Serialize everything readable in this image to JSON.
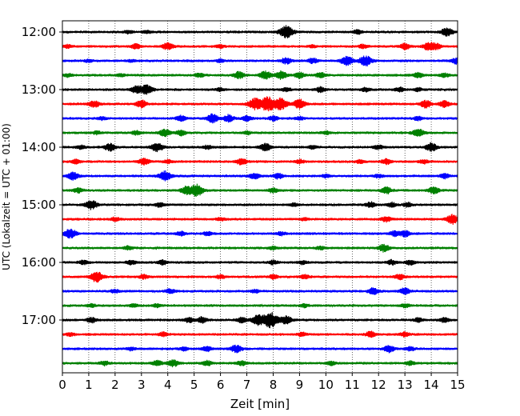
{
  "chart_data": {
    "type": "line",
    "title": "",
    "xlabel": "Zeit  [min]",
    "ylabel": "UTC (Lokalzeit = UTC + 01:00)",
    "xlim": [
      0,
      15
    ],
    "x_ticks": [
      "0",
      "1",
      "2",
      "3",
      "4",
      "5",
      "6",
      "7",
      "8",
      "9",
      "10",
      "11",
      "12",
      "13",
      "14",
      "15"
    ],
    "y_tick_labels": [
      "12:00",
      "13:00",
      "14:00",
      "15:00",
      "16:00",
      "17:00"
    ],
    "grid": "vertical dotted lines at each minute",
    "trace_interval_min": 15,
    "trace_colors": [
      "#000000",
      "#ff0000",
      "#0000ff",
      "#008000"
    ],
    "traces": [
      {
        "start": "12:00",
        "color": "#000000",
        "events": [
          [
            2.5,
            0.6
          ],
          [
            3.2,
            0.5
          ],
          [
            8.5,
            2.5
          ],
          [
            11.2,
            0.7
          ],
          [
            14.6,
            1.6
          ]
        ]
      },
      {
        "start": "12:15",
        "color": "#ff0000",
        "events": [
          [
            0.2,
            0.6
          ],
          [
            2.8,
            0.9
          ],
          [
            4.0,
            1.3
          ],
          [
            6.0,
            0.6
          ],
          [
            9.5,
            0.5
          ],
          [
            11.4,
            0.7
          ],
          [
            13.0,
            1.2
          ],
          [
            13.9,
            1.5
          ],
          [
            14.2,
            1.0
          ]
        ]
      },
      {
        "start": "12:30",
        "color": "#0000ff",
        "events": [
          [
            1.0,
            0.5
          ],
          [
            2.6,
            0.4
          ],
          [
            6.0,
            0.6
          ],
          [
            8.5,
            1.2
          ],
          [
            9.5,
            1.0
          ],
          [
            10.8,
            1.8
          ],
          [
            11.5,
            2.0
          ],
          [
            15.0,
            1.4
          ]
        ]
      },
      {
        "start": "12:45",
        "color": "#008000",
        "events": [
          [
            0.2,
            0.6
          ],
          [
            2.2,
            0.5
          ],
          [
            5.2,
            0.8
          ],
          [
            6.7,
            1.3
          ],
          [
            7.7,
            1.6
          ],
          [
            8.3,
            1.5
          ],
          [
            9.0,
            1.1
          ],
          [
            9.8,
            1.0
          ],
          [
            13.5,
            1.0
          ],
          [
            14.5,
            0.8
          ]
        ]
      },
      {
        "start": "13:00",
        "color": "#000000",
        "events": [
          [
            2.8,
            1.4
          ],
          [
            3.2,
            1.8
          ],
          [
            6.0,
            0.6
          ],
          [
            8.5,
            0.7
          ],
          [
            9.8,
            1.0
          ],
          [
            11.5,
            0.7
          ],
          [
            12.8,
            0.8
          ],
          [
            13.5,
            0.6
          ]
        ]
      },
      {
        "start": "13:15",
        "color": "#ff0000",
        "events": [
          [
            1.2,
            1.3
          ],
          [
            3.0,
            1.4
          ],
          [
            7.3,
            2.2
          ],
          [
            7.8,
            2.8
          ],
          [
            8.3,
            2.2
          ],
          [
            9.0,
            1.8
          ],
          [
            13.8,
            1.4
          ],
          [
            14.5,
            1.2
          ]
        ]
      },
      {
        "start": "13:30",
        "color": "#0000ff",
        "events": [
          [
            1.5,
            0.6
          ],
          [
            4.5,
            1.1
          ],
          [
            5.7,
            1.7
          ],
          [
            6.3,
            1.3
          ],
          [
            7.0,
            1.0
          ],
          [
            8.0,
            0.9
          ],
          [
            9.0,
            0.6
          ],
          [
            13.5,
            0.7
          ]
        ]
      },
      {
        "start": "13:45",
        "color": "#008000",
        "events": [
          [
            1.3,
            0.6
          ],
          [
            2.8,
            0.8
          ],
          [
            3.9,
            1.4
          ],
          [
            4.5,
            1.0
          ],
          [
            7.0,
            0.6
          ],
          [
            10.0,
            0.6
          ],
          [
            13.5,
            1.5
          ]
        ]
      },
      {
        "start": "14:00",
        "color": "#000000",
        "events": [
          [
            0.7,
            0.7
          ],
          [
            1.8,
            1.4
          ],
          [
            3.6,
            1.7
          ],
          [
            5.5,
            0.7
          ],
          [
            7.7,
            1.4
          ],
          [
            9.5,
            0.7
          ],
          [
            12.0,
            0.8
          ],
          [
            14.0,
            1.6
          ]
        ]
      },
      {
        "start": "14:15",
        "color": "#ff0000",
        "events": [
          [
            0.5,
            0.8
          ],
          [
            3.1,
            1.3
          ],
          [
            4.0,
            0.7
          ],
          [
            6.8,
            1.2
          ],
          [
            9.0,
            0.8
          ],
          [
            11.3,
            0.7
          ],
          [
            12.3,
            1.0
          ],
          [
            13.7,
            0.8
          ]
        ]
      },
      {
        "start": "14:30",
        "color": "#0000ff",
        "events": [
          [
            0.4,
            1.5
          ],
          [
            3.9,
            1.8
          ],
          [
            7.3,
            1.2
          ],
          [
            8.2,
            1.0
          ],
          [
            10.0,
            0.6
          ],
          [
            12.0,
            0.6
          ],
          [
            14.5,
            1.0
          ]
        ]
      },
      {
        "start": "14:45",
        "color": "#008000",
        "events": [
          [
            0.6,
            0.9
          ],
          [
            4.7,
            1.4
          ],
          [
            5.1,
            2.3
          ],
          [
            8.0,
            0.9
          ],
          [
            12.3,
            1.3
          ],
          [
            14.1,
            1.3
          ]
        ]
      },
      {
        "start": "15:00",
        "color": "#000000",
        "events": [
          [
            1.1,
            1.8
          ],
          [
            3.7,
            0.8
          ],
          [
            8.8,
            0.6
          ],
          [
            11.7,
            1.0
          ],
          [
            12.5,
            0.8
          ],
          [
            13.1,
            0.8
          ]
        ]
      },
      {
        "start": "15:15",
        "color": "#ff0000",
        "events": [
          [
            2.0,
            0.7
          ],
          [
            6.0,
            0.6
          ],
          [
            9.2,
            0.5
          ],
          [
            12.3,
            1.0
          ],
          [
            14.8,
            1.8
          ]
        ]
      },
      {
        "start": "15:30",
        "color": "#0000ff",
        "events": [
          [
            0.3,
            1.8
          ],
          [
            4.5,
            0.8
          ],
          [
            5.5,
            0.7
          ],
          [
            8.3,
            0.6
          ],
          [
            12.6,
            0.9
          ],
          [
            13.0,
            1.2
          ]
        ]
      },
      {
        "start": "15:45",
        "color": "#008000",
        "events": [
          [
            2.5,
            0.7
          ],
          [
            8.0,
            0.6
          ],
          [
            9.8,
            0.6
          ],
          [
            12.2,
            1.4
          ]
        ]
      },
      {
        "start": "16:00",
        "color": "#000000",
        "events": [
          [
            0.8,
            0.8
          ],
          [
            2.6,
            0.8
          ],
          [
            3.8,
            0.9
          ],
          [
            8.0,
            0.8
          ],
          [
            9.1,
            0.7
          ],
          [
            12.5,
            0.9
          ],
          [
            13.2,
            0.9
          ]
        ]
      },
      {
        "start": "16:15",
        "color": "#ff0000",
        "events": [
          [
            1.3,
            2.0
          ],
          [
            3.1,
            0.8
          ],
          [
            6.0,
            0.7
          ],
          [
            8.0,
            0.8
          ],
          [
            9.2,
            0.7
          ],
          [
            12.8,
            1.0
          ]
        ]
      },
      {
        "start": "16:30",
        "color": "#0000ff",
        "events": [
          [
            2.0,
            0.7
          ],
          [
            4.1,
            0.9
          ],
          [
            7.3,
            0.6
          ],
          [
            11.8,
            1.2
          ],
          [
            13.0,
            1.2
          ]
        ]
      },
      {
        "start": "16:45",
        "color": "#008000",
        "events": [
          [
            1.1,
            0.6
          ],
          [
            2.7,
            0.7
          ],
          [
            3.6,
            0.6
          ],
          [
            9.2,
            0.6
          ],
          [
            13.0,
            0.7
          ]
        ]
      },
      {
        "start": "17:00",
        "color": "#000000",
        "events": [
          [
            1.1,
            1.0
          ],
          [
            4.8,
            0.9
          ],
          [
            5.3,
            1.1
          ],
          [
            6.8,
            1.0
          ],
          [
            7.4,
            1.8
          ],
          [
            7.9,
            3.0
          ],
          [
            8.5,
            1.5
          ],
          [
            13.5,
            0.8
          ],
          [
            14.5,
            0.9
          ]
        ]
      },
      {
        "start": "17:15",
        "color": "#ff0000",
        "events": [
          [
            0.3,
            0.6
          ],
          [
            3.8,
            0.8
          ],
          [
            9.1,
            0.8
          ],
          [
            11.7,
            1.1
          ],
          [
            13.0,
            0.8
          ]
        ]
      },
      {
        "start": "17:30",
        "color": "#0000ff",
        "events": [
          [
            2.6,
            0.6
          ],
          [
            4.6,
            0.7
          ],
          [
            5.5,
            0.9
          ],
          [
            6.6,
            1.5
          ],
          [
            12.4,
            1.3
          ],
          [
            13.2,
            0.8
          ]
        ]
      },
      {
        "start": "17:45",
        "color": "#008000",
        "events": [
          [
            1.6,
            0.8
          ],
          [
            3.6,
            1.1
          ],
          [
            4.2,
            1.3
          ],
          [
            5.5,
            0.9
          ],
          [
            6.8,
            0.9
          ],
          [
            10.2,
            0.7
          ],
          [
            13.2,
            0.7
          ]
        ]
      }
    ]
  }
}
